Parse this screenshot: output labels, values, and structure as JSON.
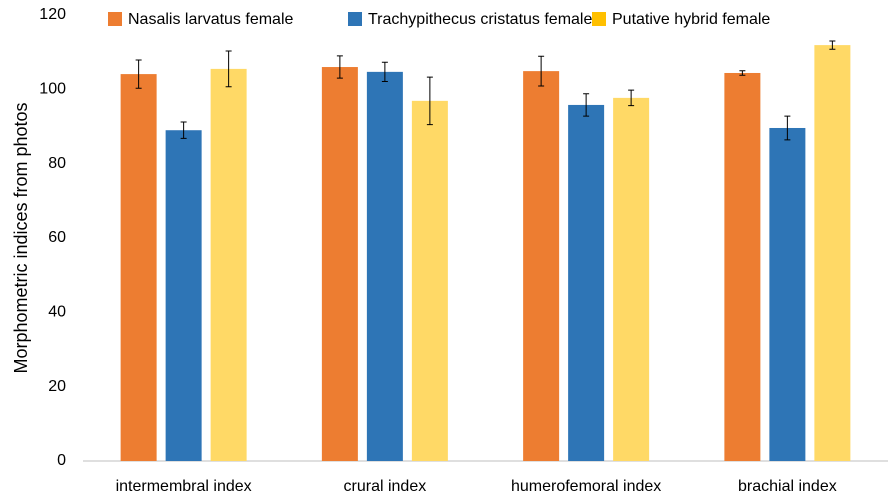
{
  "chart_data": {
    "type": "bar",
    "y_label": "Morphometric indices from photos",
    "categories": [
      "intermembral index",
      "crural index",
      "humerofemoral index",
      "brachial index"
    ],
    "series": [
      {
        "name": "Nasalis larvatus female",
        "color": "#ed7d31",
        "values": [
          104.1,
          106,
          104.9,
          104.4
        ],
        "errors": [
          3.8,
          3,
          4,
          0.6
        ]
      },
      {
        "name": "Trachypithecus cristatus female",
        "color": "#2e75b6",
        "values": [
          89,
          104.7,
          95.8,
          89.6
        ],
        "errors": [
          2.2,
          2.6,
          3,
          3.2
        ]
      },
      {
        "name": "Putative hybrid female",
        "color": "#ffd966",
        "values": [
          105.5,
          96.9,
          97.7,
          111.9
        ],
        "errors": [
          4.8,
          6.4,
          2.1,
          1.1
        ]
      }
    ],
    "ylim": [
      0,
      120
    ],
    "yticks": [
      0,
      20,
      40,
      60,
      80,
      100,
      120
    ],
    "grid": false
  }
}
